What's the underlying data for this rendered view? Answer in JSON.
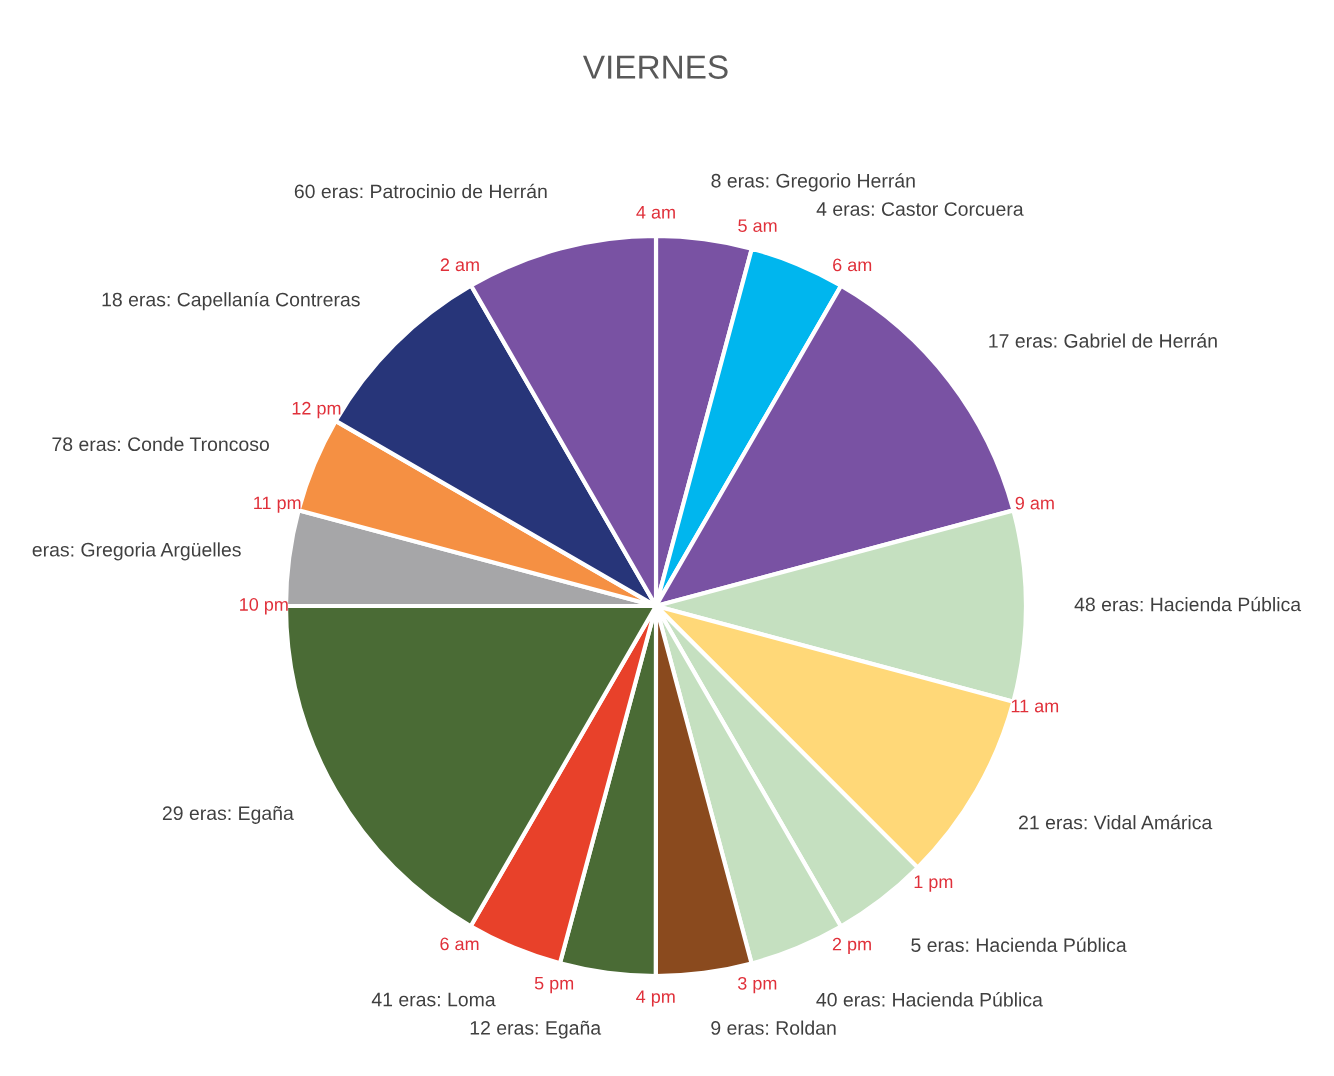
{
  "chart_data": {
    "type": "pie",
    "title": "VIERNES",
    "categories": [
      "8 eras: Gregorio Herrán",
      "4 eras: Castor Corcuera",
      "17 eras: Gabriel de Herrán",
      "48 eras: Hacienda Pública",
      "21 eras: Vidal Amárica",
      "5 eras: Hacienda Pública",
      "40 eras: Hacienda Pública",
      "9 eras: Roldan",
      "12 eras: Egaña",
      "41 eras: Loma",
      "29 eras: Egaña",
      "eras: Gregoria Argüelles",
      "78 eras: Conde Troncoso",
      "18 eras: Capellanía Contreras",
      "60 eras: Patrocinio de Herrán"
    ],
    "values": [
      4.17,
      4.17,
      12.5,
      8.33,
      8.33,
      4.17,
      4.17,
      4.17,
      4.17,
      4.17,
      16.65,
      4.17,
      4.17,
      8.33,
      8.33
    ],
    "colors": [
      "#7952a3",
      "#00b6ee",
      "#7952a3",
      "#c5e0c0",
      "#ffd878",
      "#c5e0c0",
      "#c5e0c0",
      "#8a4a1e",
      "#4a6b35",
      "#e8412a",
      "#4a6b35",
      "#a6a6a8",
      "#f59043",
      "#273579",
      "#7952a3"
    ],
    "annotations": [
      "4 am",
      "5 am",
      "6 am",
      "9 am",
      "11 am",
      "1 pm",
      "2 pm",
      "3 pm",
      "4 pm",
      "5 pm",
      "6 am",
      "10 pm",
      "11 pm",
      "12 pm",
      "2 am"
    ]
  }
}
